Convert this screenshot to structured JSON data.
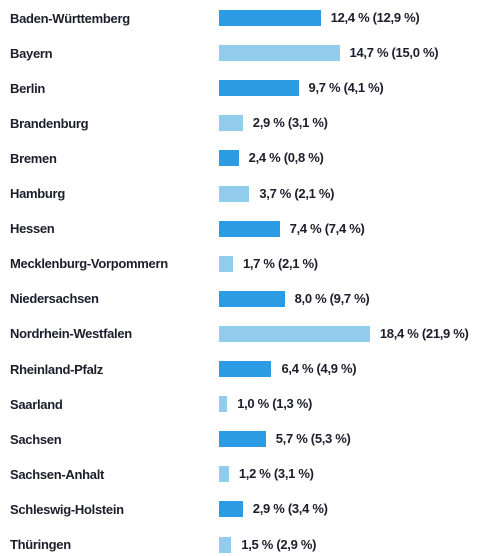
{
  "chart_data": {
    "type": "bar",
    "orientation": "horizontal",
    "categories": [
      "Baden-Württemberg",
      "Bayern",
      "Berlin",
      "Brandenburg",
      "Bremen",
      "Hamburg",
      "Hessen",
      "Mecklenburg-Vorpommern",
      "Niedersachsen",
      "Nordrhein-Westfalen",
      "Rheinland-Pfalz",
      "Saarland",
      "Sachsen",
      "Sachsen-Anhalt",
      "Schleswig-Holstein",
      "Thüringen"
    ],
    "values": [
      12.4,
      14.7,
      9.7,
      2.9,
      2.4,
      3.7,
      7.4,
      1.7,
      8.0,
      18.4,
      6.4,
      1.0,
      5.7,
      1.2,
      2.9,
      1.5
    ],
    "value_labels": [
      "12,4 % (12,9 %)",
      "14,7 % (15,0 %)",
      "9,7 % (4,1 %)",
      "2,9 % (3,1 %)",
      "2,4 % (0,8 %)",
      "3,7 % (2,1 %)",
      "7,4 % (7,4 %)",
      "1,7 % (2,1 %)",
      "8,0 % (9,7 %)",
      "18,4 % (21,9 %)",
      "6,4 % (4,9 %)",
      "1,0 % (1,3 %)",
      "5,7 % (5,3 %)",
      "1,2 % (3,1 %)",
      "2,9 % (3,4 %)",
      "1,5 % (2,9 %)"
    ],
    "colors": [
      "#2b9be3",
      "#92cdee"
    ]
  }
}
